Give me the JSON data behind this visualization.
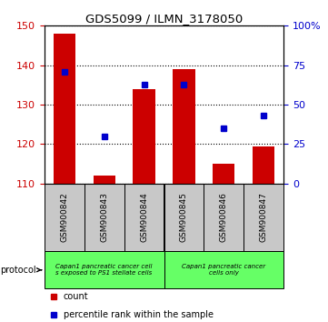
{
  "title": "GDS5099 / ILMN_3178050",
  "samples": [
    "GSM900842",
    "GSM900843",
    "GSM900844",
    "GSM900845",
    "GSM900846",
    "GSM900847"
  ],
  "bar_values": [
    148.0,
    112.0,
    134.0,
    139.0,
    115.0,
    119.5
  ],
  "percentile_values": [
    71,
    30,
    63,
    63,
    35,
    43
  ],
  "bar_bottom": 110,
  "left_ylim": [
    110,
    150
  ],
  "left_yticks": [
    110,
    120,
    130,
    140,
    150
  ],
  "right_ylim": [
    0,
    100
  ],
  "right_yticks": [
    0,
    25,
    50,
    75,
    100
  ],
  "right_yticklabels": [
    "0",
    "25",
    "50",
    "75",
    "100%"
  ],
  "bar_color": "#CC0000",
  "marker_color": "#0000CC",
  "group1_label": "Capan1 pancreatic cancer cell\ns exposed to PS1 stellate cells",
  "group2_label": "Capan1 pancreatic cancer\ncells only",
  "group_color": "#66FF66",
  "sample_box_color": "#C8C8C8",
  "protocol_text": "protocol",
  "legend_items": [
    {
      "color": "#CC0000",
      "label": "count"
    },
    {
      "color": "#0000CC",
      "label": "percentile rank within the sample"
    }
  ],
  "bg_color": "#FFFFFF",
  "tick_label_color_left": "#CC0000",
  "tick_label_color_right": "#0000CC"
}
